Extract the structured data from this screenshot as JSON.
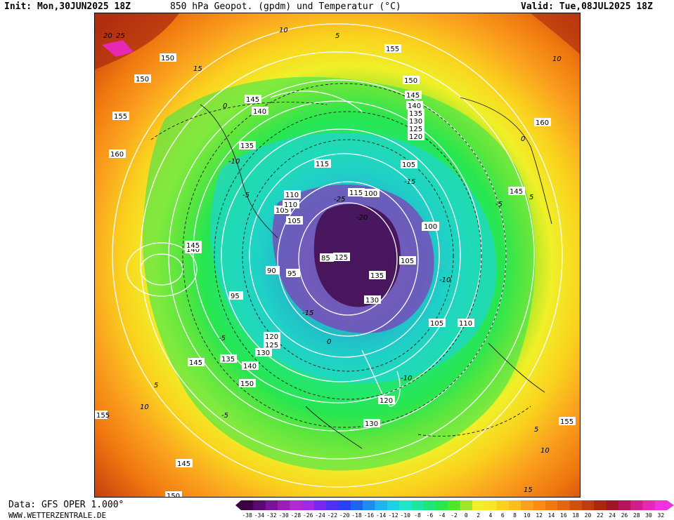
{
  "header": {
    "init": "Init: Mon,30JUN2025 18Z",
    "title": "850 hPa Geopot. (gpdm) und Temperatur (°C)",
    "valid": "Valid: Tue,08JUL2025 18Z"
  },
  "footer": {
    "data_source": "Data: GFS OPER 1.000°",
    "website": "WWW.WETTERZENTRALE.DE"
  },
  "colorbar": {
    "ticks": [
      "-38",
      "-34",
      "-32",
      "-30",
      "-28",
      "-26",
      "-24",
      "-22",
      "-20",
      "-18",
      "-16",
      "-14",
      "-12",
      "-10",
      "-8",
      "-6",
      "-4",
      "-2",
      "0",
      "2",
      "4",
      "6",
      "8",
      "10",
      "12",
      "14",
      "16",
      "18",
      "20",
      "22",
      "24",
      "26",
      "28",
      "30",
      "32"
    ],
    "colors": [
      "#3c0040",
      "#5a0a6e",
      "#7a1496",
      "#9a1eb4",
      "#b428d2",
      "#a028e6",
      "#7828f0",
      "#5030f0",
      "#2840f0",
      "#1e64f0",
      "#1e8cf0",
      "#1eb4f0",
      "#1ed2e6",
      "#1ee6c8",
      "#1ee6a0",
      "#1ee678",
      "#28e650",
      "#50e628",
      "#a0e628",
      "#f0f028",
      "#fae628",
      "#fad21e",
      "#fabe1e",
      "#faa01e",
      "#fa8c14",
      "#f0780f",
      "#e6640f",
      "#d2500f",
      "#be3c0f",
      "#aa280f",
      "#a01428",
      "#b4145a",
      "#d21e8c",
      "#e628b4",
      "#f032dc"
    ]
  },
  "map": {
    "height_labels": [
      "155",
      "150",
      "150",
      "155",
      "145",
      "140",
      "135",
      "160",
      "105",
      "110",
      "100",
      "95",
      "90",
      "95",
      "115",
      "105",
      "100",
      "120",
      "125",
      "130",
      "135",
      "140",
      "145",
      "150",
      "125",
      "130",
      "135",
      "140",
      "145",
      "150",
      "145",
      "140",
      "145",
      "135",
      "130",
      "125",
      "120",
      "115",
      "110",
      "105",
      "105",
      "110",
      "160",
      "145",
      "155",
      "150",
      "155",
      "120",
      "130",
      "100",
      "105",
      "85"
    ],
    "temp_labels": [
      "10",
      "5",
      "0",
      "-5",
      "-10",
      "-15",
      "-20",
      "-25",
      "15",
      "20",
      "25",
      "-10",
      "-5",
      "0",
      "5",
      "10",
      "-15",
      "-10",
      "-5",
      "0",
      "5",
      "10",
      "15",
      "-5",
      "5",
      "10"
    ]
  }
}
